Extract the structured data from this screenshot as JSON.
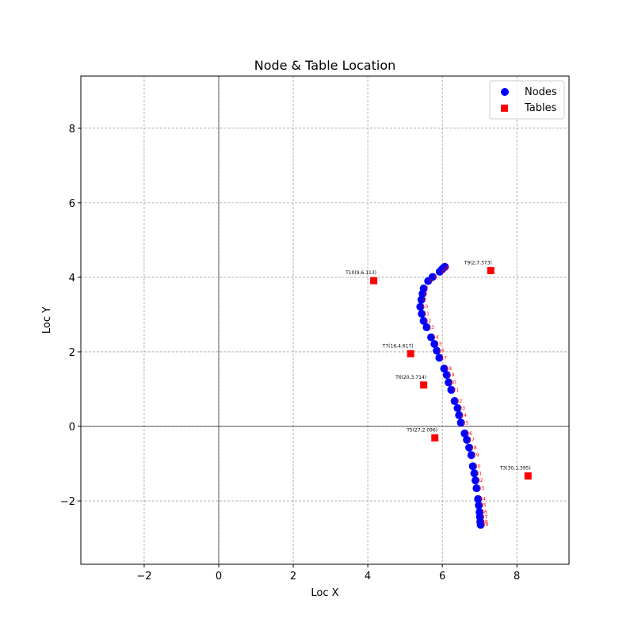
{
  "chart_data": {
    "type": "scatter",
    "title": "Node & Table Location",
    "xlabel": "Loc X",
    "ylabel": "Loc Y",
    "xlim": [
      -3.7,
      9.4
    ],
    "ylim": [
      -3.7,
      9.4
    ],
    "xticks": [
      -2,
      0,
      2,
      4,
      6,
      8
    ],
    "yticks": [
      -2,
      0,
      2,
      4,
      6,
      8
    ],
    "xtick_labels": [
      "−2",
      "0",
      "2",
      "4",
      "6",
      "8"
    ],
    "ytick_labels": [
      "−2",
      "0",
      "2",
      "4",
      "6",
      "8"
    ],
    "grid": true,
    "grid_style": "dashed",
    "zero_lines": true,
    "legend_position": "top-right",
    "series": [
      {
        "name": "Nodes",
        "marker": "circle",
        "color": "#0000ff",
        "label_color": "#ff0000",
        "points": [
          {
            "label": "1",
            "x": 6.07,
            "y": 4.28
          },
          {
            "label": "2",
            "x": 6.03,
            "y": 4.25
          },
          {
            "label": "3",
            "x": 5.99,
            "y": 4.21
          },
          {
            "label": "4",
            "x": 5.93,
            "y": 4.15
          },
          {
            "label": "5",
            "x": 5.74,
            "y": 4.01
          },
          {
            "label": "6",
            "x": 5.62,
            "y": 3.9
          },
          {
            "label": "7",
            "x": 5.5,
            "y": 3.7
          },
          {
            "label": "8",
            "x": 5.47,
            "y": 3.56
          },
          {
            "label": "9",
            "x": 5.44,
            "y": 3.4
          },
          {
            "label": "10",
            "x": 5.41,
            "y": 3.21
          },
          {
            "label": "11",
            "x": 5.45,
            "y": 3.02
          },
          {
            "label": "12",
            "x": 5.5,
            "y": 2.83
          },
          {
            "label": "13",
            "x": 5.58,
            "y": 2.66
          },
          {
            "label": "14",
            "x": 5.7,
            "y": 2.39
          },
          {
            "label": "15",
            "x": 5.79,
            "y": 2.21
          },
          {
            "label": "16",
            "x": 5.85,
            "y": 2.03
          },
          {
            "label": "17",
            "x": 5.92,
            "y": 1.84
          },
          {
            "label": "18",
            "x": 6.05,
            "y": 1.55
          },
          {
            "label": "19",
            "x": 6.12,
            "y": 1.38
          },
          {
            "label": "20",
            "x": 6.17,
            "y": 1.18
          },
          {
            "label": "21",
            "x": 6.24,
            "y": 0.98
          },
          {
            "label": "22",
            "x": 6.33,
            "y": 0.68
          },
          {
            "label": "23",
            "x": 6.41,
            "y": 0.49
          },
          {
            "label": "24",
            "x": 6.45,
            "y": 0.3
          },
          {
            "label": "25",
            "x": 6.5,
            "y": 0.1
          },
          {
            "label": "26",
            "x": 6.6,
            "y": -0.19
          },
          {
            "label": "27",
            "x": 6.66,
            "y": -0.36
          },
          {
            "label": "28",
            "x": 6.72,
            "y": -0.57
          },
          {
            "label": "29",
            "x": 6.78,
            "y": -0.77
          },
          {
            "label": "30",
            "x": 6.82,
            "y": -1.07
          },
          {
            "label": "31",
            "x": 6.86,
            "y": -1.26
          },
          {
            "label": "32",
            "x": 6.89,
            "y": -1.45
          },
          {
            "label": "33",
            "x": 6.92,
            "y": -1.66
          },
          {
            "label": "34",
            "x": 6.96,
            "y": -1.95
          },
          {
            "label": "35",
            "x": 6.98,
            "y": -2.12
          },
          {
            "label": "36",
            "x": 7.0,
            "y": -2.3
          },
          {
            "label": "37",
            "x": 7.01,
            "y": -2.43
          },
          {
            "label": "38",
            "x": 7.02,
            "y": -2.56
          },
          {
            "label": "39",
            "x": 7.03,
            "y": -2.64
          }
        ]
      },
      {
        "name": "Tables",
        "marker": "square",
        "color": "#ff0000",
        "label_color": "#000000",
        "points": [
          {
            "label": "T9(2,7.373)",
            "x": 7.3,
            "y": 4.18
          },
          {
            "label": "T10(9,6.113)",
            "x": 4.16,
            "y": 3.91
          },
          {
            "label": "T7(16,4.617)",
            "x": 5.15,
            "y": 1.95
          },
          {
            "label": "T6(20,3.714)",
            "x": 5.5,
            "y": 1.11
          },
          {
            "label": "T5(27,2.096)",
            "x": 5.8,
            "y": -0.31
          },
          {
            "label": "T3(30,1.395)",
            "x": 8.3,
            "y": -1.33
          }
        ]
      }
    ]
  }
}
